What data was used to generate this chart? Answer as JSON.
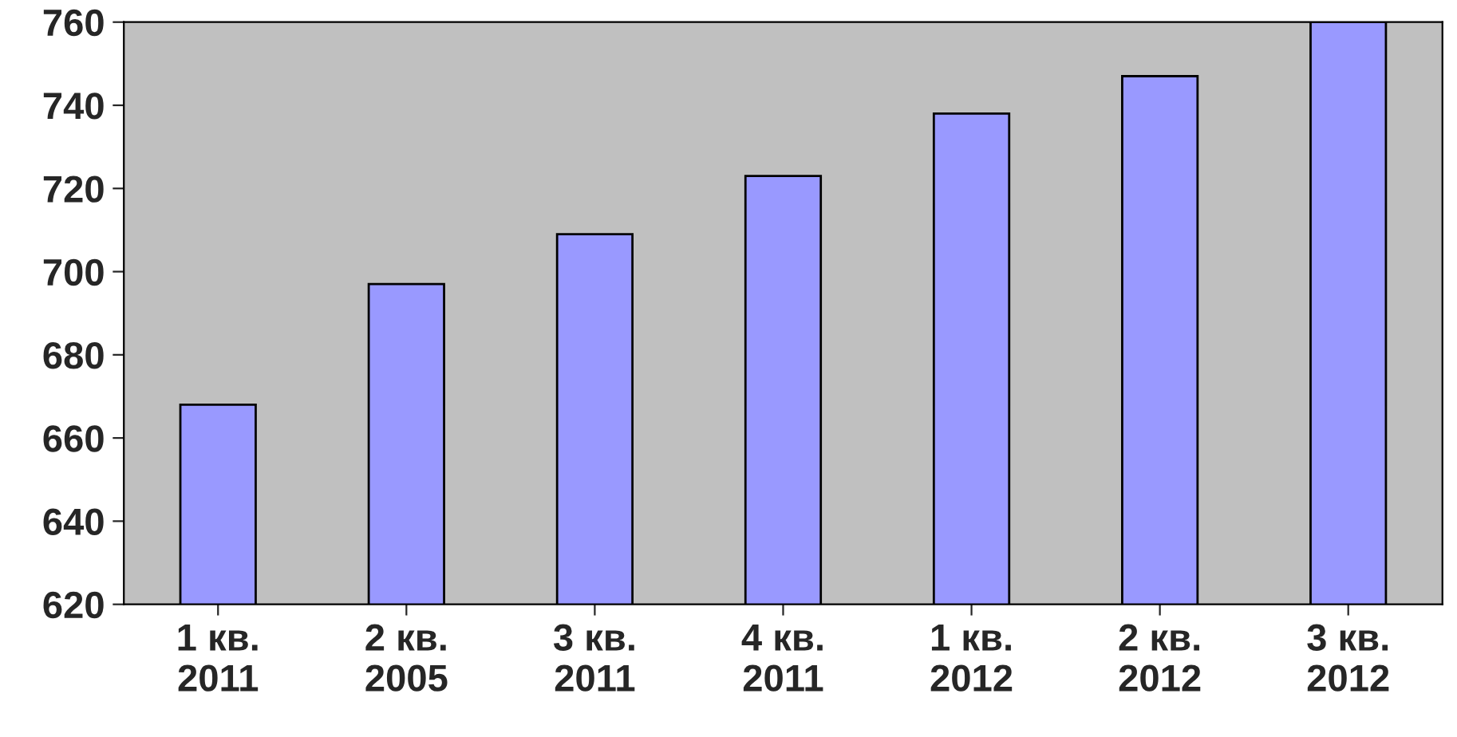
{
  "chart_data": {
    "type": "bar",
    "categories": [
      "1 кв.\n2011",
      "2 кв.\n2005",
      "3 кв.\n2011",
      "4 кв.\n2011",
      "1 кв.\n2012",
      "2 кв.\n2012",
      "3 кв.\n2012"
    ],
    "values": [
      668,
      697,
      709,
      723,
      738,
      747,
      760
    ],
    "color": "#9999ff",
    "ylim": [
      620,
      760
    ],
    "yticks": [
      620,
      640,
      660,
      680,
      700,
      720,
      740,
      760
    ],
    "grid": false,
    "legend": false
  }
}
